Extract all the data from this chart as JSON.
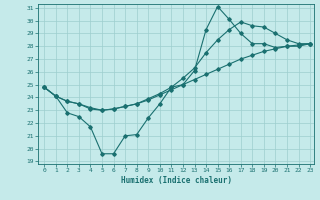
{
  "title": "",
  "xlabel": "Humidex (Indice chaleur)",
  "ylabel": "",
  "xlim": [
    -0.5,
    23.3
  ],
  "ylim": [
    18.8,
    31.3
  ],
  "xticks": [
    0,
    1,
    2,
    3,
    4,
    5,
    6,
    7,
    8,
    9,
    10,
    11,
    12,
    13,
    14,
    15,
    16,
    17,
    18,
    19,
    20,
    21,
    22,
    23
  ],
  "yticks": [
    19,
    20,
    21,
    22,
    23,
    24,
    25,
    26,
    27,
    28,
    29,
    30,
    31
  ],
  "bg_color": "#c5eaea",
  "grid_color": "#9ecece",
  "line_color": "#1a7070",
  "lines": [
    {
      "x": [
        0,
        1,
        2,
        3,
        4,
        5,
        6,
        7,
        8,
        9,
        10,
        11,
        12,
        13,
        14,
        15,
        16,
        17,
        18,
        19,
        20,
        21,
        22,
        23
      ],
      "y": [
        24.8,
        24.1,
        22.8,
        22.5,
        21.7,
        19.6,
        19.6,
        21.0,
        21.1,
        22.4,
        23.5,
        24.8,
        25.0,
        26.1,
        29.3,
        31.1,
        30.1,
        29.0,
        28.2,
        28.2,
        27.9,
        28.0,
        28.0,
        28.2
      ]
    },
    {
      "x": [
        0,
        1,
        2,
        3,
        4,
        5,
        6,
        7,
        8,
        9,
        10,
        11,
        12,
        13,
        14,
        15,
        16,
        17,
        18,
        19,
        20,
        21,
        22,
        23
      ],
      "y": [
        24.8,
        24.1,
        23.7,
        23.5,
        23.1,
        23.0,
        23.1,
        23.3,
        23.5,
        23.8,
        24.2,
        24.6,
        25.0,
        25.4,
        25.8,
        26.2,
        26.6,
        27.0,
        27.3,
        27.6,
        27.8,
        28.0,
        28.1,
        28.2
      ]
    },
    {
      "x": [
        0,
        1,
        2,
        3,
        4,
        5,
        6,
        7,
        8,
        9,
        10,
        11,
        12,
        13,
        14,
        15,
        16,
        17,
        18,
        19,
        20,
        21,
        22,
        23
      ],
      "y": [
        24.8,
        24.1,
        23.7,
        23.5,
        23.2,
        23.0,
        23.1,
        23.3,
        23.5,
        23.9,
        24.3,
        24.8,
        25.5,
        26.3,
        27.5,
        28.5,
        29.3,
        29.9,
        29.6,
        29.5,
        29.0,
        28.5,
        28.2,
        28.2
      ]
    }
  ]
}
